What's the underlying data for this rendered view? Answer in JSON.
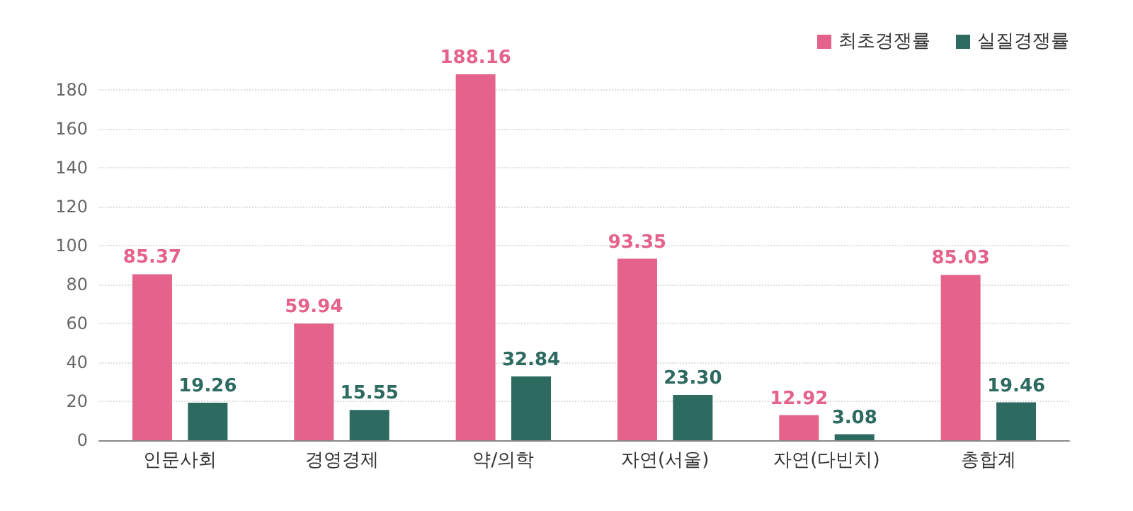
{
  "chart_data": {
    "type": "bar",
    "categories": [
      "인문사회",
      "경영경제",
      "약/의학",
      "자연(서울)",
      "자연(다빈치)",
      "총합계"
    ],
    "series": [
      {
        "name": "최초경쟁률",
        "color": "#e5628a",
        "values": [
          85.37,
          59.94,
          188.16,
          93.35,
          12.92,
          85.03
        ]
      },
      {
        "name": "실질경쟁률",
        "color": "#2d6a60",
        "values": [
          19.26,
          15.55,
          32.84,
          23.3,
          3.08,
          19.46
        ]
      }
    ],
    "value_labels": [
      [
        "85.37",
        "59.94",
        "188.16",
        "93.35",
        "12.92",
        "85.03"
      ],
      [
        "19.26",
        "15.55",
        "32.84",
        "23.30",
        "3.08",
        "19.46"
      ]
    ],
    "ylim": [
      0,
      190
    ],
    "yticks": [
      0,
      20,
      40,
      60,
      80,
      100,
      120,
      140,
      160,
      180
    ],
    "grid": "y",
    "legend": "top right"
  }
}
